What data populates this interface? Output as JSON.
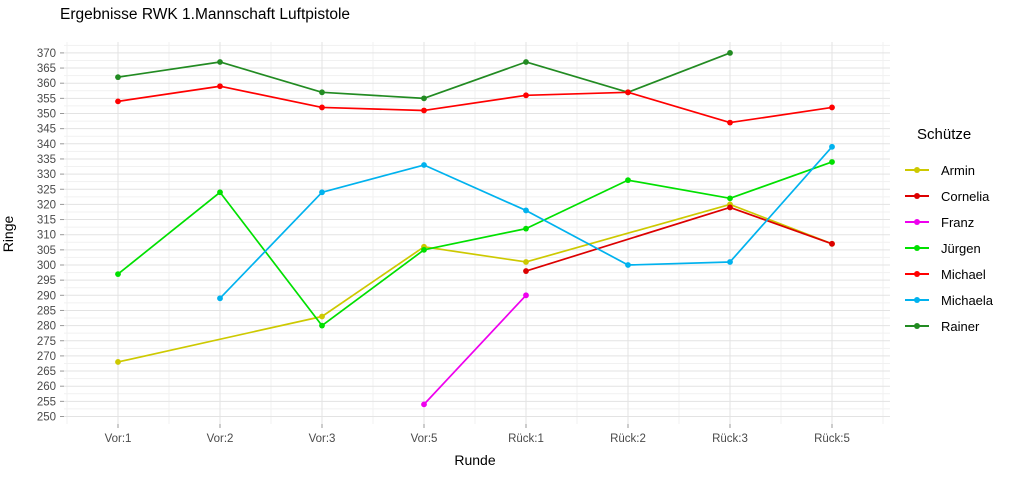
{
  "title": "Ergebnisse RWK 1.Mannschaft Luftpistole",
  "chart_data": {
    "type": "line",
    "title": "Ergebnisse RWK 1.Mannschaft Luftpistole",
    "xlabel": "Runde",
    "ylabel": "Ringe",
    "legend_title": "Schütze",
    "legend_position": "right",
    "grid": true,
    "ylim": [
      250,
      370
    ],
    "ytick_step": 5,
    "categories": [
      "Vor:1",
      "Vor:2",
      "Vor:3",
      "Vor:5",
      "Rück:1",
      "Rück:2",
      "Rück:3",
      "Rück:5"
    ],
    "series": [
      {
        "name": "Armin",
        "color": "#cdc900",
        "values": [
          268,
          null,
          283,
          306,
          301,
          null,
          320,
          307
        ]
      },
      {
        "name": "Cornelia",
        "color": "#dc0000",
        "values": [
          null,
          null,
          null,
          null,
          298,
          null,
          319,
          307
        ]
      },
      {
        "name": "Franz",
        "color": "#ee00ee",
        "values": [
          null,
          null,
          null,
          254,
          290,
          null,
          null,
          null
        ]
      },
      {
        "name": "Jürgen",
        "color": "#00e000",
        "values": [
          297,
          324,
          280,
          305,
          312,
          328,
          322,
          334
        ]
      },
      {
        "name": "Michael",
        "color": "#ff0000",
        "values": [
          354,
          359,
          352,
          351,
          356,
          357,
          347,
          352
        ]
      },
      {
        "name": "Michaela",
        "color": "#00b2ee",
        "values": [
          null,
          289,
          324,
          333,
          318,
          300,
          301,
          339
        ]
      },
      {
        "name": "Rainer",
        "color": "#228b22",
        "values": [
          362,
          367,
          357,
          355,
          367,
          357,
          370,
          null
        ]
      }
    ],
    "colors": {
      "grid_major": "#e3e3e3",
      "grid_minor": "#f1f1f1",
      "tick_text": "#4a4a4a",
      "tick_mark": "#999999"
    }
  }
}
